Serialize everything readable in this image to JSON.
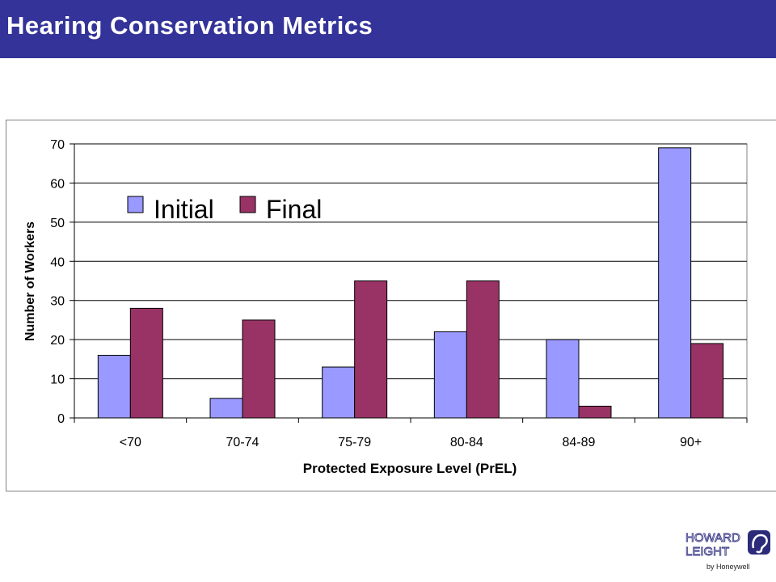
{
  "header": {
    "title": "Hearing Conservation Metrics"
  },
  "colors": {
    "header_bg": "#333399",
    "initial": "#9999FF",
    "final": "#993366"
  },
  "chart_data": {
    "type": "bar",
    "categories": [
      "<70",
      "70-74",
      "75-79",
      "80-84",
      "84-89",
      "90+"
    ],
    "series": [
      {
        "name": "Initial",
        "values": [
          16,
          5,
          13,
          22,
          20,
          69
        ]
      },
      {
        "name": "Final",
        "values": [
          28,
          25,
          35,
          35,
          3,
          19
        ]
      }
    ],
    "xlabel": "Protected Exposure Level (PrEL)",
    "ylabel": "Number of Workers",
    "ylim": [
      0,
      70
    ],
    "yticks": [
      0,
      10,
      20,
      30,
      40,
      50,
      60,
      70
    ],
    "grid": true,
    "legend": "top-left"
  },
  "logo": {
    "line1": "HOWARD",
    "line2": "LEIGHT",
    "line3": "by Honeywell",
    "icon": "ear-icon"
  }
}
